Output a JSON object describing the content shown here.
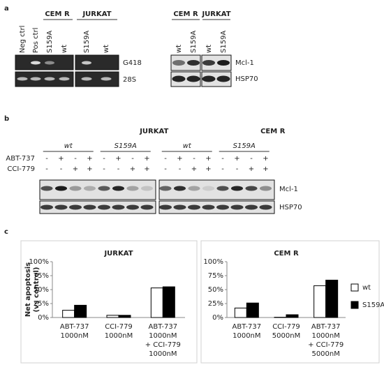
{
  "panel_labels": [
    "a",
    "b",
    "c"
  ],
  "panel_a": {
    "left": {
      "groups": [
        "CEM R",
        "JURKAT"
      ],
      "lanes": [
        "Neg ctrl",
        "Pos ctrl",
        "S159A",
        "wt",
        "S159A",
        "wt"
      ],
      "bands": [
        "G418",
        "28S"
      ]
    },
    "right": {
      "groups": [
        "CEM R",
        "JURKAT"
      ],
      "lanes": [
        "wt",
        "S159A",
        "wt",
        "S159A"
      ],
      "bands": [
        "Mcl-1",
        "HSP70"
      ]
    }
  },
  "panel_b": {
    "groups": [
      {
        "title": "JURKAT",
        "subgroups": [
          "wt",
          "S159A"
        ]
      },
      {
        "title": "CEM R",
        "subgroups": [
          "wt",
          "S159A"
        ]
      }
    ],
    "rows": [
      {
        "label": "ABT-737",
        "signs": [
          "-",
          "+",
          "-",
          "+",
          "-",
          "+",
          "-",
          "+",
          "-",
          "+",
          "-",
          "+",
          "-",
          "+",
          "-",
          "+"
        ]
      },
      {
        "label": "CCI-779",
        "signs": [
          "-",
          "-",
          "+",
          "+",
          "-",
          "-",
          "+",
          "+",
          "-",
          "-",
          "+",
          "+",
          "-",
          "-",
          "+",
          "+"
        ]
      }
    ],
    "bands": [
      "Mcl-1",
      "HSP70"
    ]
  },
  "chart_data": [
    {
      "type": "bar",
      "title": "JURKAT",
      "y_label": [
        "Net apoptosis",
        "(vs control)"
      ],
      "categories": [
        [
          "ABT-737",
          "1000nM"
        ],
        [
          "CCI-779",
          "1000nM"
        ],
        [
          "ABT-737",
          "1000nM",
          "+ CCI-779",
          "1000nM"
        ]
      ],
      "series": [
        {
          "name": "wt",
          "color": "#ffffff",
          "values": [
            13,
            4,
            53
          ]
        },
        {
          "name": "S159A",
          "color": "#000000",
          "values": [
            22,
            4,
            55
          ]
        }
      ],
      "ylim": [
        0,
        100
      ],
      "yticks": [
        {
          "value": 0,
          "label": "0%"
        },
        {
          "value": 25,
          "label": "25%"
        },
        {
          "value": 50,
          "label": "50%"
        },
        {
          "value": 75,
          "label": "75%"
        },
        {
          "value": 100,
          "label": "100%"
        }
      ]
    },
    {
      "type": "bar",
      "title": "CEM R",
      "categories": [
        [
          "ABT-737",
          "1000nM"
        ],
        [
          "CCI-779",
          "5000nM"
        ],
        [
          "ABT-737",
          "1000nM",
          "+ CCI-779",
          "5000nM"
        ]
      ],
      "series": [
        {
          "name": "wt",
          "color": "#ffffff",
          "values": [
            17,
            0.5,
            57
          ]
        },
        {
          "name": "S159A",
          "color": "#000000",
          "values": [
            26,
            5,
            67
          ]
        }
      ],
      "ylim": [
        0,
        100
      ],
      "yticks": [
        {
          "value": 0,
          "label": "0%"
        },
        {
          "value": 25,
          "label": "25%"
        },
        {
          "value": 50,
          "label": "50%"
        },
        {
          "value": 75,
          "label": "75%"
        },
        {
          "value": 100,
          "label": "100%"
        }
      ],
      "legend": "right"
    }
  ]
}
